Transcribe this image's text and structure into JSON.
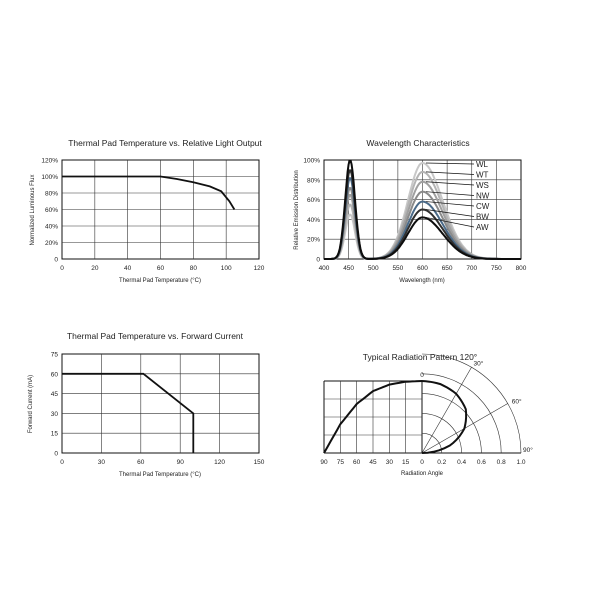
{
  "chart_data": [
    {
      "type": "line",
      "title": "Thermal Pad Temperature vs. Relative Light Output",
      "xlabel": "Thermal Pad Temperature (°C)",
      "ylabel": "Normalized Luminous Flux",
      "xlim": [
        0,
        120
      ],
      "ylim": [
        0,
        120
      ],
      "x_ticks": [
        "0",
        "20",
        "40",
        "60",
        "80",
        "100",
        "120"
      ],
      "y_ticks": [
        "0",
        "20%",
        "40%",
        "60%",
        "80%",
        "100%",
        "120%"
      ],
      "grid": true,
      "series": [
        {
          "color": "#111111",
          "points": [
            [
              0,
              100
            ],
            [
              60,
              100
            ],
            [
              70,
              97
            ],
            [
              80,
              93
            ],
            [
              90,
              88
            ],
            [
              97,
              82
            ],
            [
              102,
              70
            ],
            [
              105,
              60
            ]
          ]
        }
      ]
    },
    {
      "type": "line",
      "title": "Wavelength Characteristics",
      "xlabel": "Wavelength (nm)",
      "ylabel": "Relative Emission Distribution",
      "xlim": [
        400,
        800
      ],
      "ylim": [
        0,
        100
      ],
      "x_ticks": [
        "400",
        "450",
        "500",
        "550",
        "600",
        "650",
        "700",
        "750",
        "800"
      ],
      "y_ticks": [
        "0",
        "20%",
        "40%",
        "60%",
        "80%",
        "100%"
      ],
      "grid": true,
      "series": [
        {
          "name": "WL",
          "color": "#c8c8c8",
          "blue_peak": 45,
          "yellow_peak": 97,
          "valley": 22
        },
        {
          "name": "WT",
          "color": "#b4b4b4",
          "blue_peak": 55,
          "yellow_peak": 88,
          "valley": 24
        },
        {
          "name": "WS",
          "color": "#a0a0a0",
          "blue_peak": 65,
          "yellow_peak": 78,
          "valley": 25
        },
        {
          "name": "NW",
          "color": "#8a8a8a",
          "blue_peak": 72,
          "yellow_peak": 68,
          "valley": 26
        },
        {
          "name": "CW",
          "color": "#4a6a88",
          "blue_peak": 82,
          "yellow_peak": 58,
          "valley": 27
        },
        {
          "name": "BW",
          "color": "#303030",
          "blue_peak": 90,
          "yellow_peak": 50,
          "valley": 28
        },
        {
          "name": "AW",
          "color": "#0d0d0d",
          "blue_peak": 100,
          "yellow_peak": 42,
          "valley": 29
        }
      ]
    },
    {
      "type": "line",
      "title": "Thermal Pad Temperature vs. Forward Current",
      "xlabel": "Thermal Pad Temperature (°C)",
      "ylabel": "Forward Current (mA)",
      "xlim": [
        0,
        150
      ],
      "ylim": [
        0,
        75
      ],
      "x_ticks": [
        "0",
        "30",
        "60",
        "90",
        "120",
        "150"
      ],
      "y_ticks": [
        "0",
        "15",
        "30",
        "45",
        "60",
        "75"
      ],
      "grid": true,
      "series": [
        {
          "color": "#111111",
          "points": [
            [
              0,
              60
            ],
            [
              62,
              60
            ],
            [
              100,
              30
            ],
            [
              100,
              0
            ]
          ]
        }
      ]
    },
    {
      "type": "line",
      "title": "Typical Radiation Pattern   120°",
      "xlabel": "Radiation Angle",
      "x_ticks": [
        "90",
        "75",
        "60",
        "45",
        "30",
        "15",
        "0",
        "0.2",
        "0.4",
        "0.6",
        "0.8",
        "1.0"
      ],
      "angle_labels": [
        "0",
        "30°",
        "60°",
        "90°"
      ],
      "grid": true,
      "series": [
        {
          "color": "#111111",
          "angle_intensity": [
            [
              0,
              1.0
            ],
            [
              15,
              0.99
            ],
            [
              30,
              0.95
            ],
            [
              45,
              0.86
            ],
            [
              60,
              0.68
            ],
            [
              75,
              0.4
            ],
            [
              90,
              0.0
            ]
          ]
        }
      ]
    }
  ]
}
